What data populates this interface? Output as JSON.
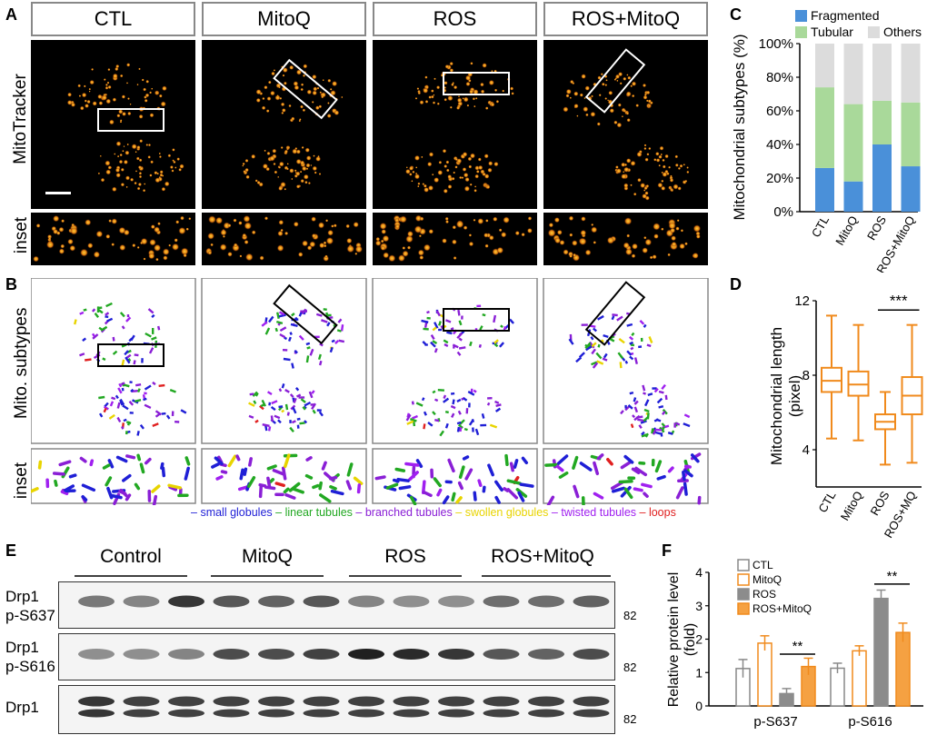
{
  "panels": {
    "a": "A",
    "b": "B",
    "c": "C",
    "d": "D",
    "e": "E",
    "f": "F"
  },
  "conditions": [
    "CTL",
    "MitoQ",
    "ROS",
    "ROS+MitoQ"
  ],
  "row_labels": {
    "mitotracker": "MitoTracker",
    "inset": "inset",
    "subtypes": "Mito. subtypes",
    "inset_b": "inset"
  },
  "legend_b": [
    {
      "label": "small globules",
      "color": "#1f1fd6"
    },
    {
      "label": "linear tubules",
      "color": "#22a822"
    },
    {
      "label": "branched tubules",
      "color": "#8a1fd6"
    },
    {
      "label": "swollen globules",
      "color": "#e8d400"
    },
    {
      "label": "twisted tubules",
      "color": "#a020f0"
    },
    {
      "label": "loops",
      "color": "#e02020"
    }
  ],
  "chart_data": [
    {
      "id": "C",
      "type": "bar",
      "stacked": true,
      "ylabel": "Mitochondrial subtypes (%)",
      "yticks": [
        "0%",
        "20%",
        "40%",
        "60%",
        "80%",
        "100%"
      ],
      "ylim": [
        0,
        100
      ],
      "categories": [
        "CTL",
        "MitoQ",
        "ROS",
        "ROS+MitoQ"
      ],
      "series": [
        {
          "name": "Fragmented",
          "color": "#4a90d9",
          "values": [
            26,
            18,
            40,
            27
          ]
        },
        {
          "name": "Tubular",
          "color": "#a9d99a",
          "values": [
            48,
            46,
            26,
            38
          ]
        },
        {
          "name": "Others",
          "color": "#dcdcdc",
          "values": [
            26,
            36,
            34,
            35
          ]
        }
      ]
    },
    {
      "id": "D",
      "type": "boxplot",
      "ylabel": "Mitochondrial length (pixel)",
      "ylim": [
        2,
        12
      ],
      "yticks": [
        4,
        8,
        12
      ],
      "categories": [
        "CTL",
        "MitoQ",
        "ROS",
        "ROS+MQ"
      ],
      "color": "#f08a1c",
      "boxes": [
        {
          "min": 4.6,
          "q1": 7.1,
          "median": 7.7,
          "q3": 8.4,
          "max": 11.2
        },
        {
          "min": 4.5,
          "q1": 6.9,
          "median": 7.5,
          "q3": 8.2,
          "max": 10.7
        },
        {
          "min": 3.2,
          "q1": 5.1,
          "median": 5.5,
          "q3": 5.9,
          "max": 7.1
        },
        {
          "min": 3.3,
          "q1": 5.9,
          "median": 6.9,
          "q3": 7.9,
          "max": 10.7
        }
      ],
      "significance": "***"
    },
    {
      "id": "F",
      "type": "bar",
      "ylabel": "Relative protein level (fold)",
      "ylim": [
        0,
        4
      ],
      "yticks": [
        0,
        1,
        2,
        3,
        4
      ],
      "categories": [
        "p-S637",
        "p-S616"
      ],
      "series": [
        {
          "name": "CTL",
          "fill": "#ffffff",
          "stroke": "#888888",
          "values": [
            1.12,
            1.13
          ],
          "errors": [
            0.27,
            0.15
          ]
        },
        {
          "name": "MitoQ",
          "fill": "#ffffff",
          "stroke": "#f08a1c",
          "values": [
            1.88,
            1.65
          ],
          "errors": [
            0.22,
            0.15
          ]
        },
        {
          "name": "ROS",
          "fill": "#8c8c8c",
          "stroke": "#8c8c8c",
          "values": [
            0.37,
            3.22
          ],
          "errors": [
            0.15,
            0.25
          ]
        },
        {
          "name": "ROS+MitoQ",
          "fill": "#f5a142",
          "stroke": "#f08a1c",
          "values": [
            1.18,
            2.2
          ],
          "errors": [
            0.25,
            0.28
          ]
        }
      ],
      "significance": [
        "**",
        "**"
      ]
    }
  ],
  "blot": {
    "groups": [
      "Control",
      "MitoQ",
      "ROS",
      "ROS+MitoQ"
    ],
    "rows": [
      {
        "label_line1": "Drp1",
        "label_line2": "p-S637",
        "mw": "82"
      },
      {
        "label_line1": "Drp1",
        "label_line2": "p-S616",
        "mw": "82"
      },
      {
        "label_line1": "Drp1",
        "label_line2": "",
        "mw": "82"
      }
    ]
  }
}
